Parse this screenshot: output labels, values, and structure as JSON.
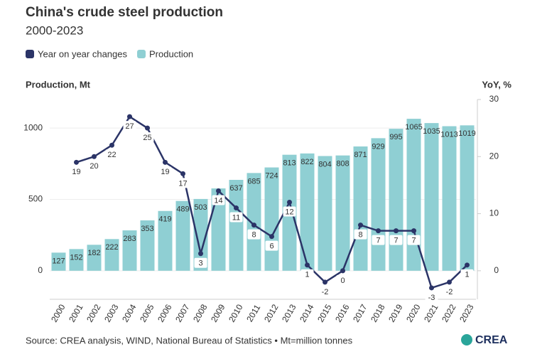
{
  "chart_data": {
    "type": "bar-line",
    "title": "China's crude steel production",
    "subtitle": "2000-2023",
    "y_label": "Production, Mt",
    "y2_label": "YoY, %",
    "source": "Source: CREA analysis, WIND, National Bureau of Statistics • Mt=million tonnes",
    "logo": "CREA",
    "categories": [
      "2000",
      "2001",
      "2002",
      "2003",
      "2004",
      "2005",
      "2006",
      "2007",
      "2008",
      "2009",
      "2010",
      "2011",
      "2012",
      "2013",
      "2014",
      "2015",
      "2016",
      "2017",
      "2018",
      "2019",
      "2020",
      "2021",
      "2022",
      "2023"
    ],
    "series": [
      {
        "name": "Production",
        "kind": "bar",
        "color": "#8fcfd3",
        "values": [
          127,
          152,
          182,
          222,
          283,
          353,
          419,
          489,
          503,
          577,
          637,
          685,
          724,
          813,
          822,
          804,
          808,
          871,
          929,
          995,
          1065,
          1035,
          1013,
          1019
        ],
        "value_labels": [
          "127",
          "152",
          "182",
          "222",
          "283",
          "353",
          "419",
          "489",
          "503",
          null,
          "637",
          "685",
          "724",
          "813",
          "822",
          "804",
          "808",
          "871",
          "929",
          "995",
          "1065",
          "1035",
          "1013",
          "1019"
        ]
      },
      {
        "name": "Year on year changes",
        "kind": "line",
        "axis": "y2",
        "color": "#2b3467",
        "values": [
          null,
          19,
          20,
          22,
          27,
          25,
          19,
          17,
          3,
          14,
          11,
          8,
          6,
          12,
          1,
          -2,
          0,
          8,
          7,
          7,
          7,
          -3,
          -2,
          1
        ]
      }
    ],
    "legend_order": [
      1,
      0
    ],
    "ylim": [
      -200,
      1200
    ],
    "yticks": [
      0,
      500,
      1000
    ],
    "y2lim": [
      -5,
      30
    ],
    "y2ticks": [
      0,
      10,
      20,
      30
    ],
    "grid": true
  }
}
